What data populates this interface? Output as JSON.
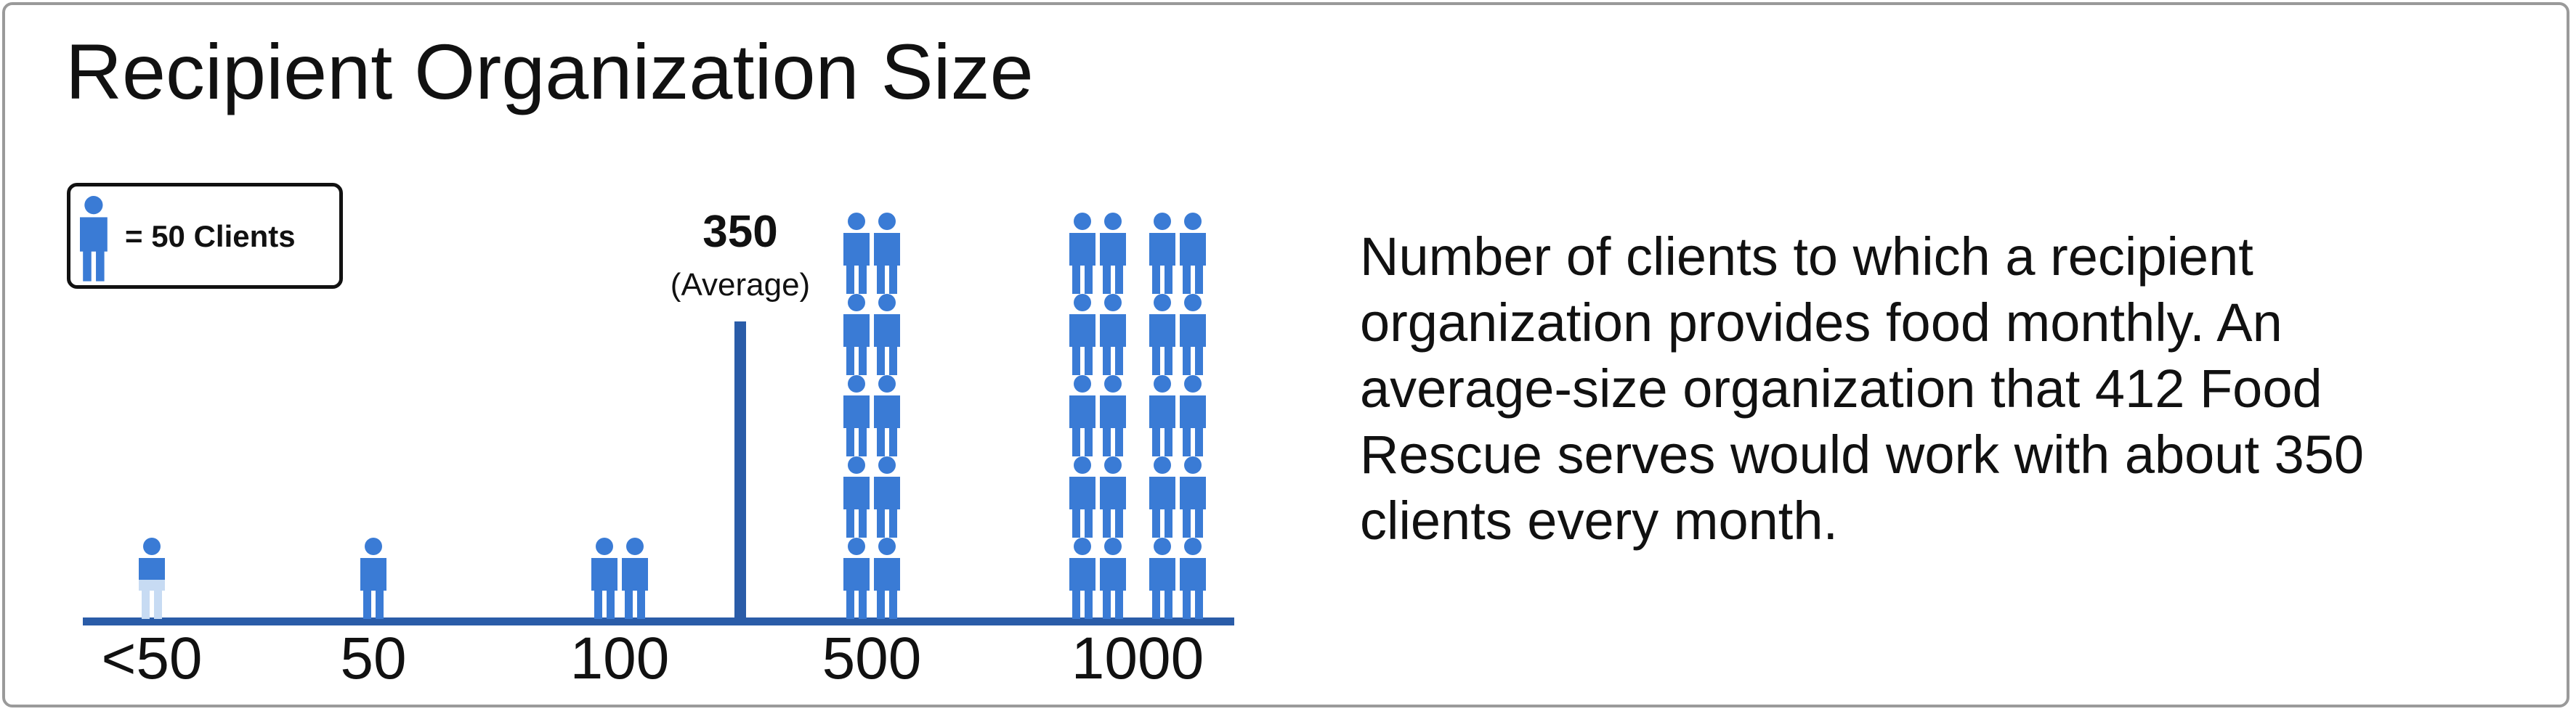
{
  "title": "Recipient Organization Size",
  "description": "Number of clients to which a recipient organization provides food monthly. An average-size organization that 412 Food Rescue serves would work with about 350 clients every month.",
  "legend": {
    "icon": "person-icon",
    "text": "=  50 Clients",
    "unit_clients": 50
  },
  "colors": {
    "icon": "#3a7bd5",
    "icon_light": "#c7dbf3",
    "axis": "#2a5ca8",
    "text": "#111111"
  },
  "chart_data": {
    "type": "pictograph",
    "title": "Recipient Organization Size",
    "clients_per_icon": 50,
    "categories": [
      "<50",
      "50",
      "100",
      "500",
      "1000"
    ],
    "values": [
      25,
      50,
      100,
      500,
      1000
    ],
    "icon_counts": [
      0.5,
      1,
      2,
      10,
      20
    ],
    "average": {
      "value": 350,
      "label": "350",
      "sublabel": "(Average)"
    }
  }
}
